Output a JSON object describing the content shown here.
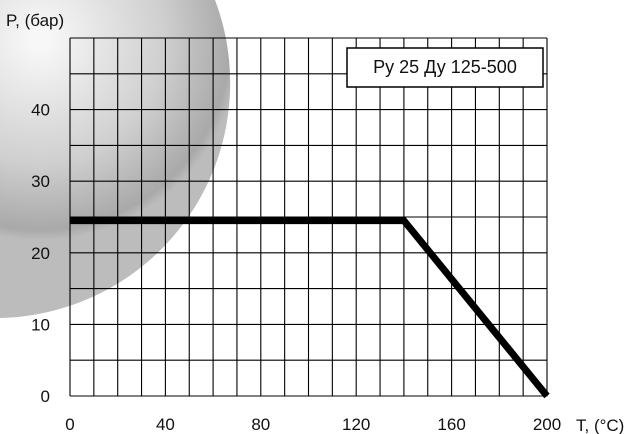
{
  "chart_data": {
    "type": "line",
    "title": "",
    "ylabel": "P, (бар)",
    "xlabel": "T, (°C)",
    "legend_box": "Ру 25 Ду 125-500",
    "legend_position": "top-right",
    "xlim": [
      0,
      200
    ],
    "ylim": [
      0,
      50
    ],
    "x_ticks": [
      0,
      40,
      80,
      120,
      160,
      200
    ],
    "y_ticks": [
      0,
      10,
      20,
      30,
      40
    ],
    "grid": true,
    "grid_columns": 20,
    "grid_rows": 10,
    "series": [
      {
        "points": [
          {
            "x": 0,
            "y": 24.5
          },
          {
            "x": 140,
            "y": 24.5
          },
          {
            "x": 200,
            "y": 0
          }
        ]
      }
    ]
  },
  "colors": {
    "line": "#000000",
    "grid": "#000000",
    "background": "#ffffff",
    "decoration_shade": "#d8d8d8"
  }
}
